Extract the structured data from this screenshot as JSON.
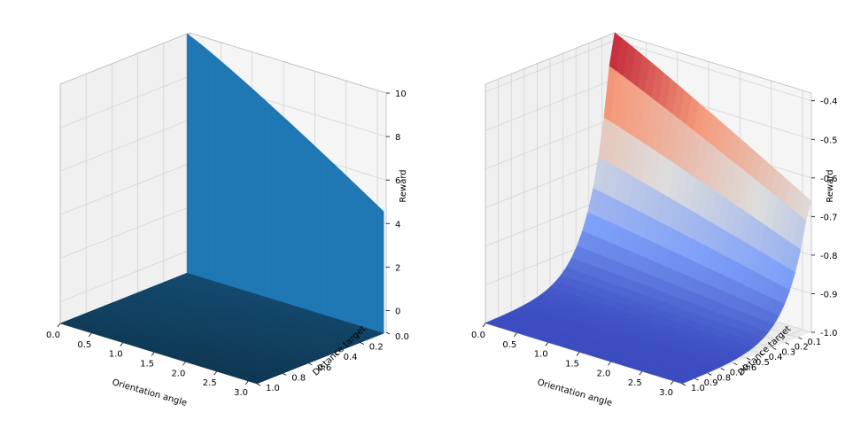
{
  "figure": {
    "background": "#ffffff"
  },
  "chart_data": [
    {
      "type": "surface",
      "title": "",
      "xlabel": "Orientation angle",
      "ylabel": "Distance target",
      "zlabel": "Reward",
      "xlim": [
        0,
        3.14
      ],
      "ylim": [
        0,
        1.0
      ],
      "zlim": [
        -1,
        10
      ],
      "xticks": [
        "0.0",
        "0.5",
        "1.0",
        "1.5",
        "2.0",
        "2.5",
        "3.0"
      ],
      "yticks": [
        "0.0",
        "0.2",
        "0.4",
        "0.6",
        "0.8",
        "1.0"
      ],
      "zticks": [
        "0",
        "2",
        "4",
        "6",
        "8",
        "10"
      ],
      "surface": {
        "description_values": {
          "reward_at_angle_0_distance_0": 10.0,
          "reward_at_angle_3.14_distance_0": 4.6,
          "reward_for_distance_above_0.02": -1.0
        },
        "colormap": "single",
        "color": "#1f77b4"
      },
      "grid": true
    },
    {
      "type": "surface",
      "title": "",
      "xlabel": "Orientation angle",
      "ylabel": "Distance target",
      "zlabel": "Reward",
      "xlim": [
        0,
        3.14
      ],
      "ylim": [
        0,
        1.0
      ],
      "zlim": [
        -1.0,
        -0.38
      ],
      "xticks": [
        "0.0",
        "0.5",
        "1.0",
        "1.5",
        "2.0",
        "2.5",
        "3.0"
      ],
      "yticks": [
        "0.1",
        "0.2",
        "0.3",
        "0.4",
        "0.5",
        "0.6",
        "0.7",
        "0.8",
        "0.9",
        "1.0"
      ],
      "zticks": [
        "-1.0",
        "-0.9",
        "-0.8",
        "-0.7",
        "-0.6",
        "-0.5",
        "-0.4"
      ],
      "surface": {
        "description_values": {
          "reward_at_angle_0_distance_0.02": -0.38,
          "reward_at_angle_3.14_distance_0.02": -0.66,
          "reward_at_distance_1.0": -1.0
        },
        "colormap": "coolwarm"
      },
      "grid": true
    }
  ]
}
